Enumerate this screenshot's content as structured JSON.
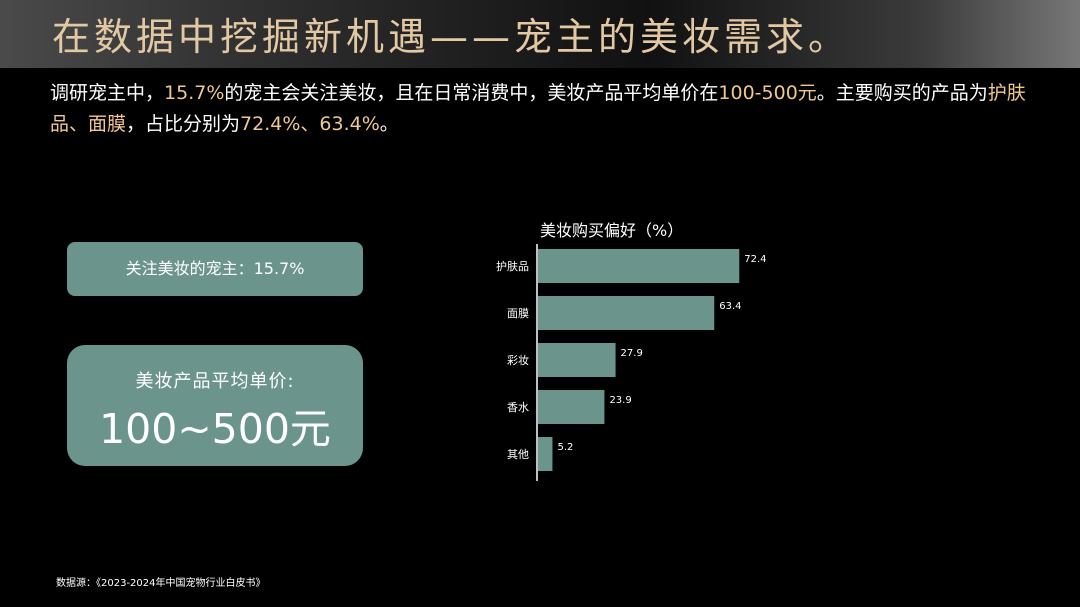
{
  "header": {
    "title": "在数据中挖掘新机遇——宠主的美妆需求。"
  },
  "intro": {
    "t1": "调研宠主中，",
    "h1": "15.7%",
    "t2": "的宠主会关注美妆，且在日常消费中，美妆产品平均单价在",
    "h2": "100-500元",
    "t3": "。主要购买的产品为",
    "h3": "护肤品、面膜",
    "t4": "，占比分别为",
    "h4": "72.4%、63.4%",
    "t5": "。"
  },
  "cards": {
    "focus": "关注美妆的宠主：15.7%",
    "price_label": "美妆产品平均单价:",
    "price_value": "100~500元"
  },
  "chart_data": {
    "type": "bar",
    "orientation": "horizontal",
    "title": "美妆购买偏好（%）",
    "categories": [
      "护肤品",
      "面膜",
      "彩妆",
      "香水",
      "其他"
    ],
    "values": [
      72.4,
      63.4,
      27.9,
      23.9,
      5.2
    ],
    "xlim": [
      0,
      100
    ],
    "bar_color": "#6b948d",
    "grid": false,
    "legend": "none"
  },
  "footer": {
    "source": "数据源：《2023-2024年中国宠物行业白皮书》"
  },
  "colors": {
    "accent": "#f0c890",
    "title": "#e3c9a3",
    "card": "#6b948d"
  }
}
